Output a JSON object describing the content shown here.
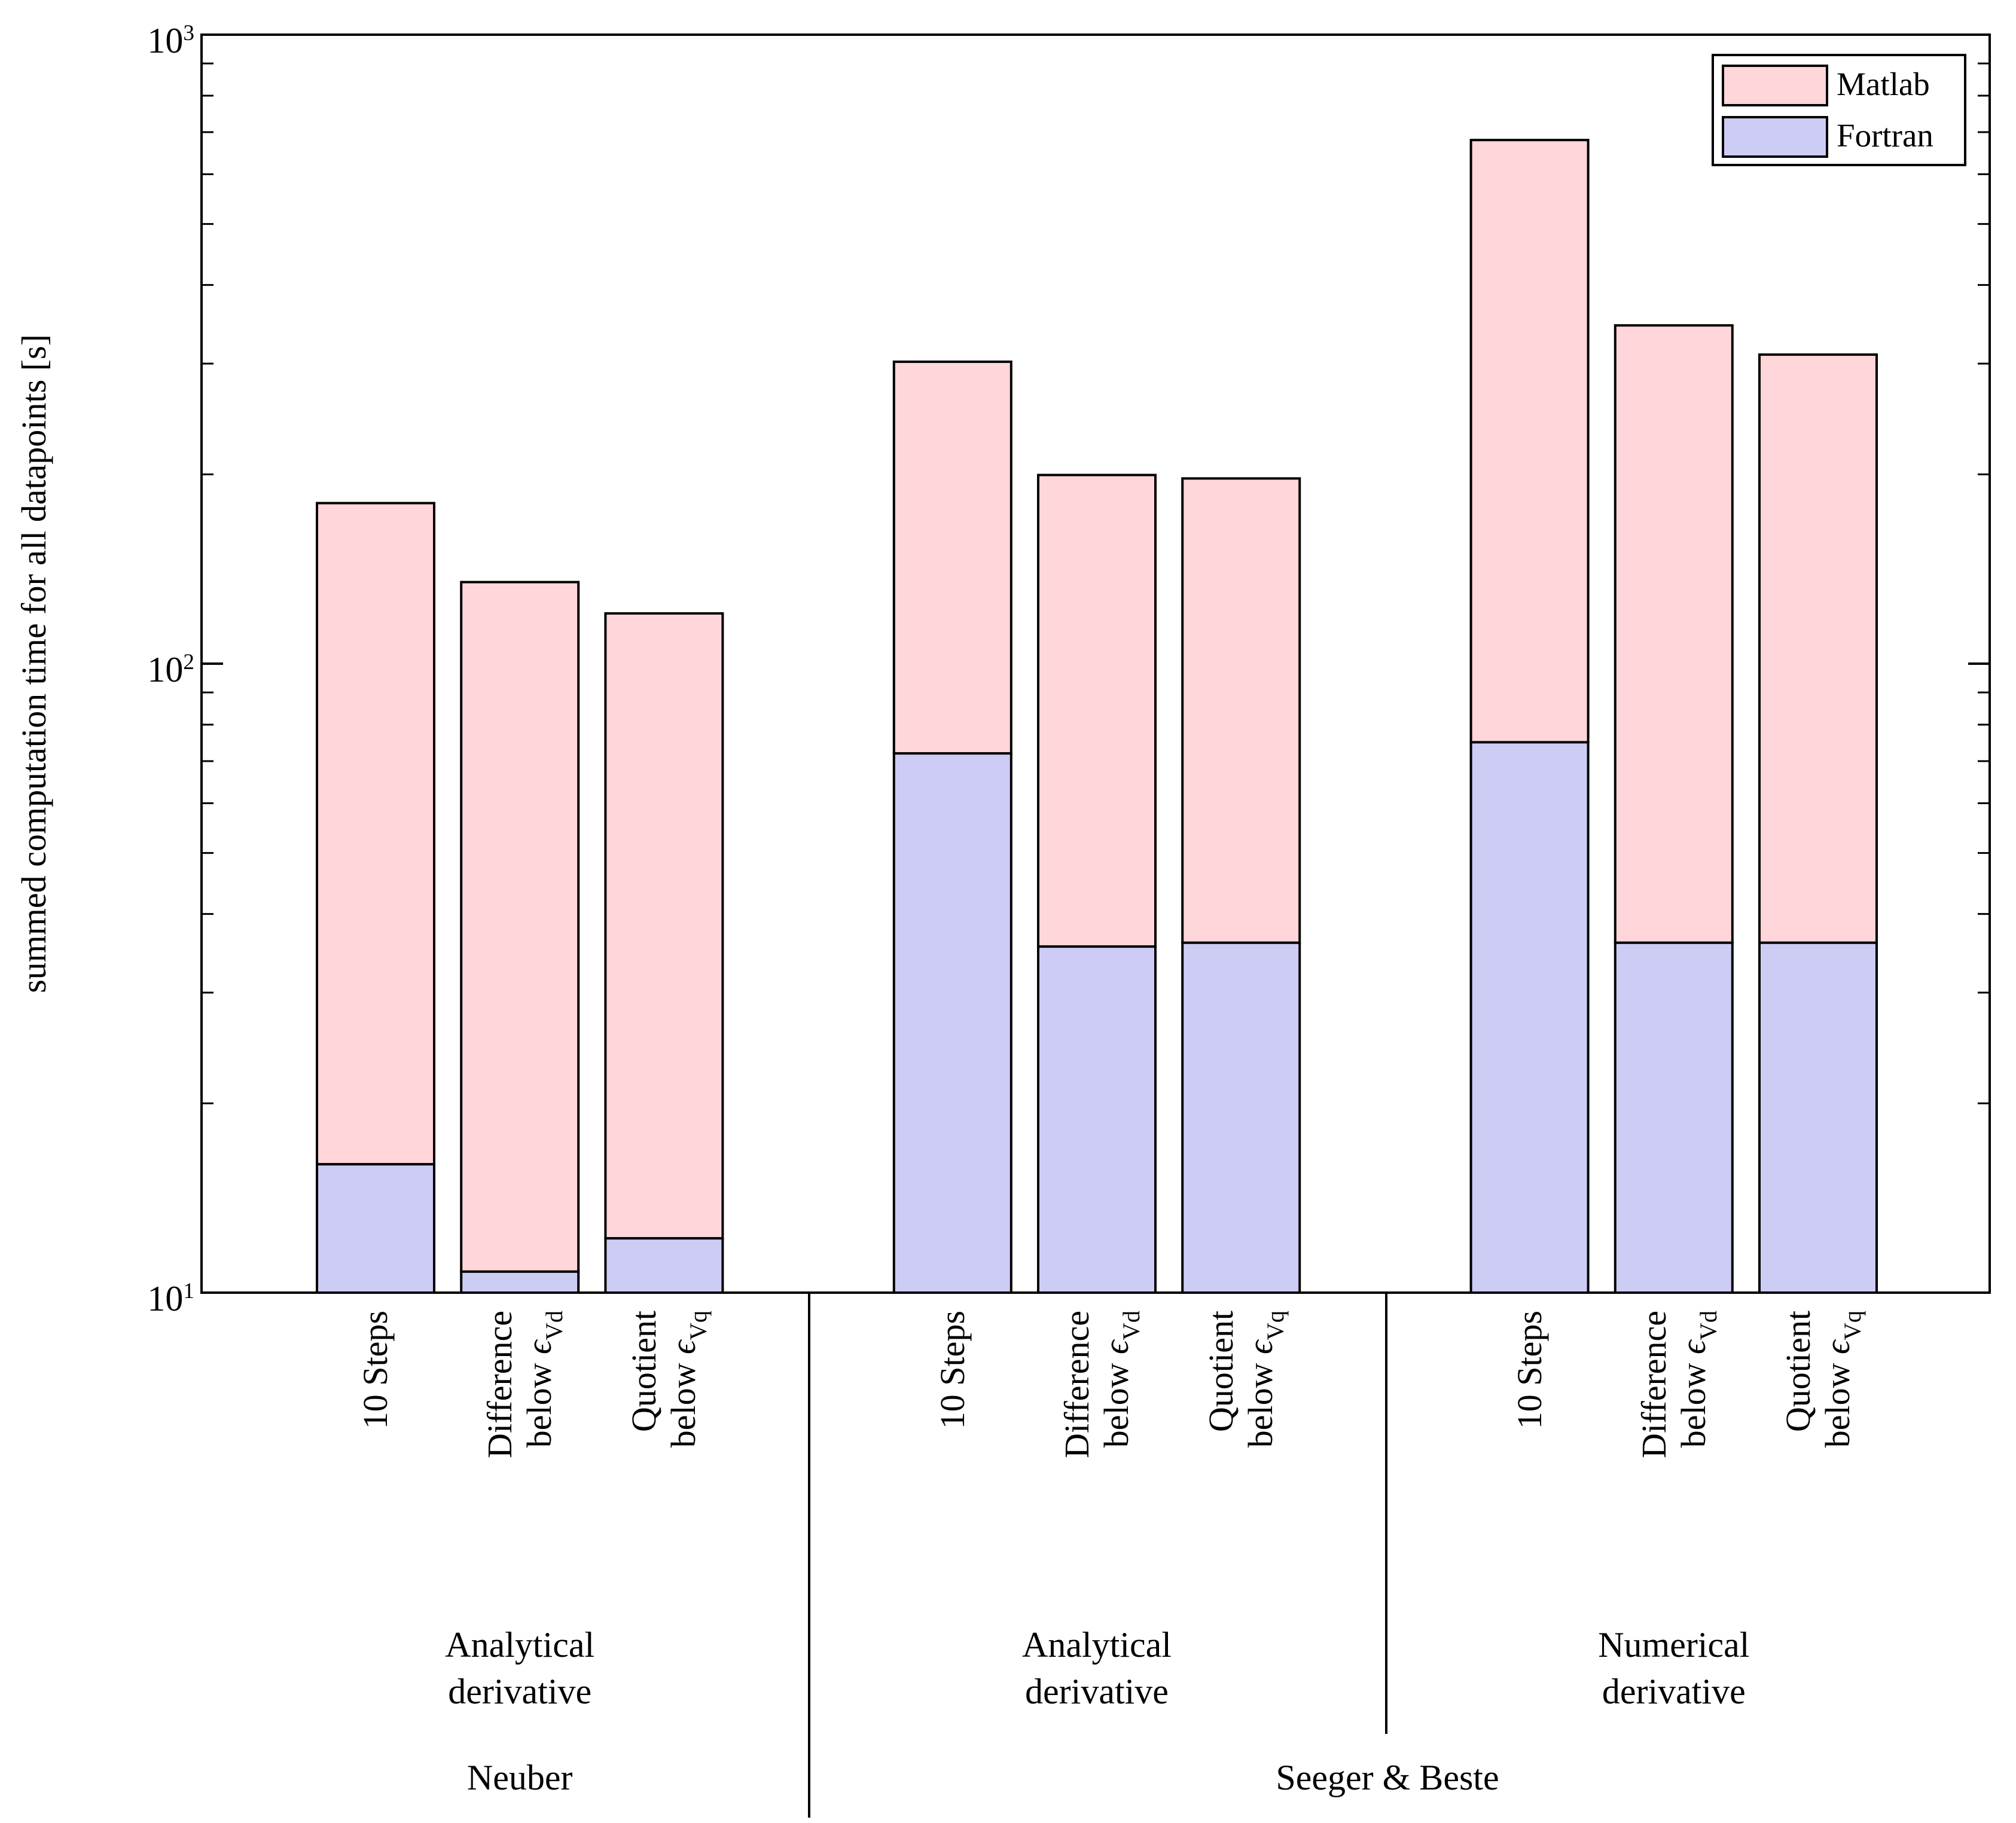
{
  "chart_data": {
    "type": "bar",
    "variant": "stacked",
    "log_scale_y": true,
    "title": "",
    "xlabel": "",
    "ylabel": "summed computation time for all datapoints [s]",
    "ylim": [
      10,
      1000
    ],
    "y_ticks": [
      {
        "base": 10,
        "exp": 1
      },
      {
        "base": 10,
        "exp": 2
      },
      {
        "base": 10,
        "exp": 3
      }
    ],
    "grid": false,
    "legend": {
      "position": "top-right",
      "entries": [
        {
          "name": "Matlab",
          "color": "#ffd6d9"
        },
        {
          "name": "Fortran",
          "color": "#ccccf5"
        }
      ]
    },
    "categories": [
      "10 Steps",
      "Difference below ϵVd",
      "Quotient below ϵVq",
      "10 Steps",
      "Difference below ϵVd",
      "Quotient below ϵVq",
      "10 Steps",
      "Difference below ϵVd",
      "Quotient below ϵVq"
    ],
    "category_lines": [
      [
        "10 Steps"
      ],
      [
        "Difference",
        "below ϵ|Vd"
      ],
      [
        "Quotient",
        "below ϵ|Vq"
      ],
      [
        "10 Steps"
      ],
      [
        "Difference",
        "below ϵ|Vd"
      ],
      [
        "Quotient",
        "below ϵ|Vq"
      ],
      [
        "10 Steps"
      ],
      [
        "Difference",
        "below ϵ|Vd"
      ],
      [
        "Quotient",
        "below ϵ|Vq"
      ]
    ],
    "series": [
      {
        "name": "Fortran",
        "color": "#ccccf5",
        "values": [
          16,
          10.8,
          12.2,
          72,
          35.5,
          36,
          75,
          36,
          36
        ]
      },
      {
        "name": "Matlab",
        "color": "#ffd6d9",
        "values": [
          164,
          124,
          108,
          230,
          164,
          161,
          605,
          309,
          274
        ]
      }
    ],
    "stack_totals": [
      180,
      134.8,
      120.2,
      302,
      199.5,
      197,
      680,
      345,
      310
    ],
    "groups": [
      {
        "label": "Analytical derivative",
        "label_lines": [
          "Analytical",
          "derivative"
        ],
        "bar_indices": [
          0,
          1,
          2
        ]
      },
      {
        "label": "Analytical derivative",
        "label_lines": [
          "Analytical",
          "derivative"
        ],
        "bar_indices": [
          3,
          4,
          5
        ]
      },
      {
        "label": "Numerical derivative",
        "label_lines": [
          "Numerical",
          "derivative"
        ],
        "bar_indices": [
          6,
          7,
          8
        ]
      }
    ],
    "super_groups": [
      {
        "label": "Neuber",
        "group_indices": [
          0
        ]
      },
      {
        "label": "Seeger & Beste",
        "group_indices": [
          1,
          2
        ]
      }
    ]
  }
}
